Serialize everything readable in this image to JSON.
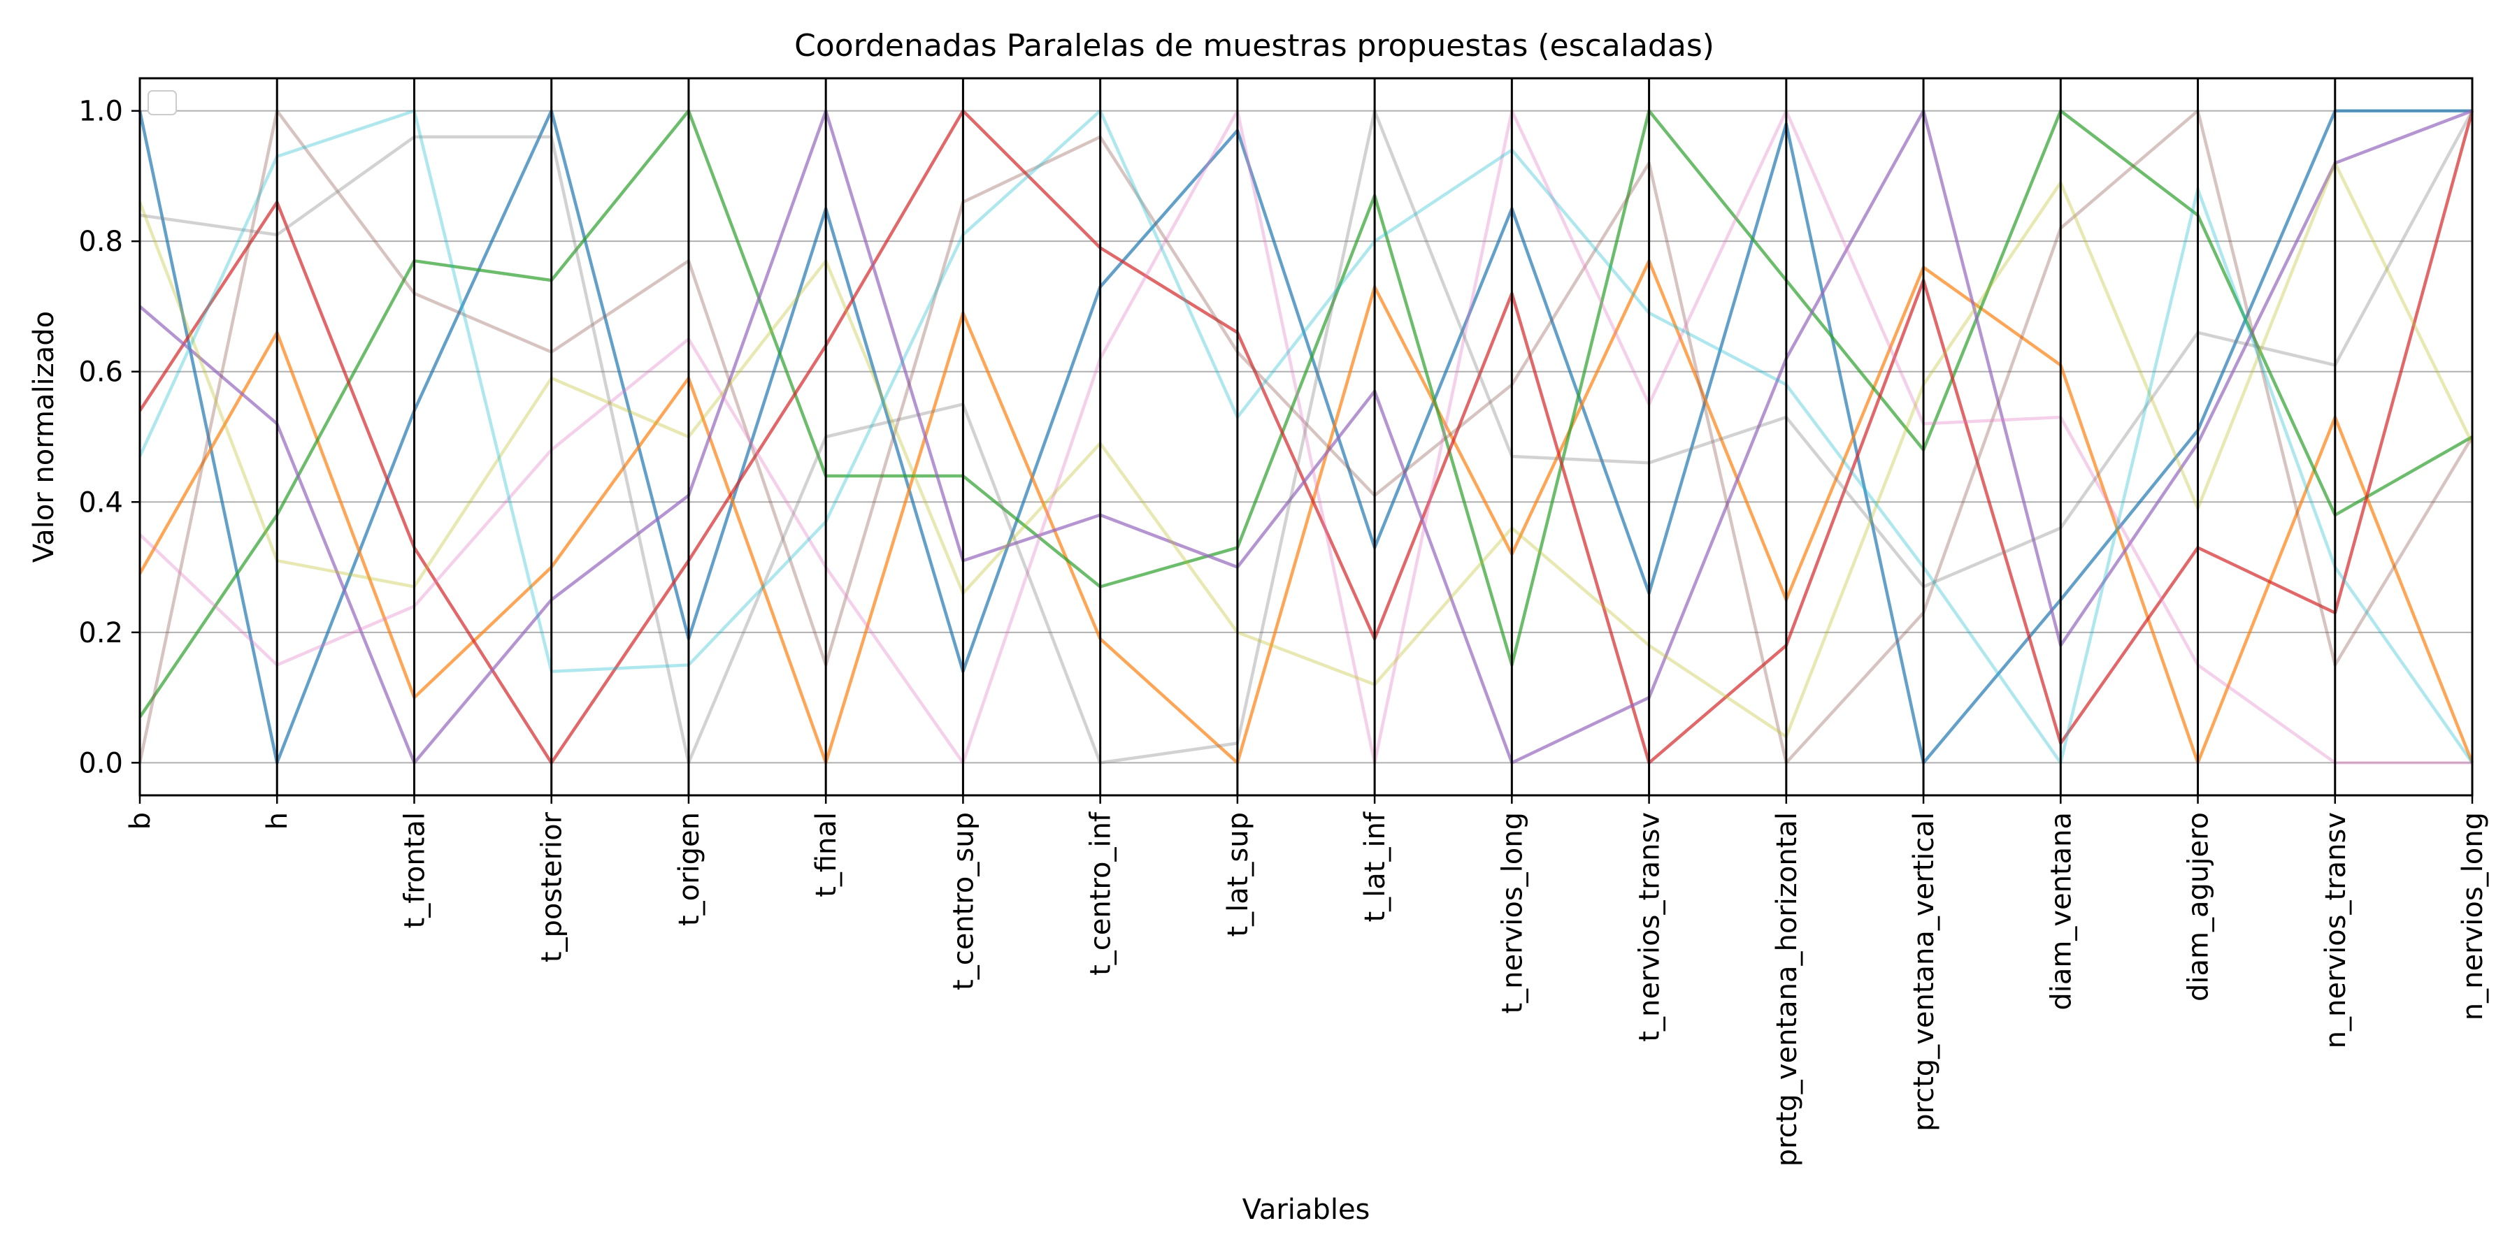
{
  "chart_data": {
    "type": "parallel-coordinates",
    "title": "Coordenadas Paralelas de muestras propuestas (escaladas)",
    "xlabel": "Variables",
    "ylabel": "Valor normalizado",
    "ylim": [
      -0.05,
      1.05
    ],
    "yticks": [
      0.0,
      0.2,
      0.4,
      0.6,
      0.8,
      1.0
    ],
    "ytick_labels": [
      "0.0",
      "0.2",
      "0.4",
      "0.6",
      "0.8",
      "1.0"
    ],
    "grid": true,
    "legend": "top-left (empty)",
    "categories": [
      "b",
      "h",
      "t_frontal",
      "t_posterior",
      "t_origen",
      "t_final",
      "t_centro_sup",
      "t_centro_inf",
      "t_lat_sup",
      "t_lat_inf",
      "t_nervios_long",
      "t_nervios_transv",
      "prctg_ventana_horizontal",
      "prctg_ventana_vertical",
      "diam_ventana",
      "diam_agujero",
      "n_nervios_transv",
      "n_nervios_long"
    ],
    "series": [
      {
        "color": "#1f77b4",
        "values": [
          1.0,
          0.0,
          0.54,
          1.0,
          0.19,
          0.85,
          0.14,
          0.73,
          0.97,
          0.33,
          0.85,
          0.26,
          0.98,
          0.0,
          0.25,
          0.51,
          1.0,
          1.0
        ]
      },
      {
        "color": "#ff7f0e",
        "values": [
          0.29,
          0.66,
          0.1,
          0.3,
          0.59,
          0.0,
          0.69,
          0.19,
          0.0,
          0.73,
          0.32,
          0.77,
          0.25,
          0.76,
          0.61,
          0.0,
          0.53,
          0.0
        ]
      },
      {
        "color": "#2ca02c",
        "values": [
          0.07,
          0.38,
          0.77,
          0.74,
          1.0,
          0.44,
          0.44,
          0.27,
          0.33,
          0.87,
          0.15,
          1.0,
          0.74,
          0.48,
          1.0,
          0.84,
          0.38,
          0.5
        ]
      },
      {
        "color": "#d62728",
        "values": [
          0.54,
          0.86,
          0.33,
          0.0,
          0.31,
          0.64,
          1.0,
          0.79,
          0.66,
          0.19,
          0.72,
          0.0,
          0.18,
          0.74,
          0.03,
          0.33,
          0.23,
          1.0
        ]
      },
      {
        "color": "#9467bd",
        "values": [
          0.7,
          0.52,
          0.0,
          0.25,
          0.41,
          1.0,
          0.31,
          0.38,
          0.3,
          0.57,
          0.0,
          0.1,
          0.62,
          1.0,
          0.18,
          0.49,
          0.92,
          1.0
        ]
      },
      {
        "color": "#8c564b",
        "values": [
          0.0,
          1.0,
          0.72,
          0.63,
          0.77,
          0.15,
          0.86,
          0.96,
          0.63,
          0.41,
          0.58,
          0.92,
          0.0,
          0.23,
          0.82,
          1.0,
          0.15,
          0.5
        ]
      },
      {
        "color": "#e377c2",
        "values": [
          0.35,
          0.15,
          0.24,
          0.48,
          0.65,
          0.3,
          0.0,
          0.62,
          1.0,
          0.0,
          1.0,
          0.55,
          1.0,
          0.52,
          0.53,
          0.15,
          0.0,
          0.0
        ]
      },
      {
        "color": "#7f7f7f",
        "values": [
          0.84,
          0.81,
          0.96,
          0.96,
          0.0,
          0.5,
          0.55,
          0.0,
          0.03,
          1.0,
          0.47,
          0.46,
          0.53,
          0.27,
          0.36,
          0.66,
          0.61,
          1.0
        ]
      },
      {
        "color": "#bcbd22",
        "values": [
          0.86,
          0.31,
          0.27,
          0.59,
          0.5,
          0.77,
          0.26,
          0.49,
          0.2,
          0.12,
          0.36,
          0.18,
          0.04,
          0.58,
          0.89,
          0.39,
          0.92,
          0.49
        ]
      },
      {
        "color": "#17becf",
        "values": [
          0.47,
          0.93,
          1.0,
          0.14,
          0.15,
          0.37,
          0.81,
          1.0,
          0.53,
          0.8,
          0.94,
          0.69,
          0.58,
          0.3,
          0.0,
          0.88,
          0.3,
          0.0
        ]
      }
    ]
  }
}
